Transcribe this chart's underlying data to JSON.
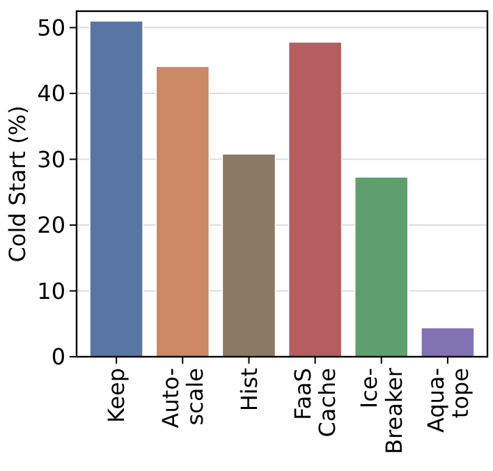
{
  "chart_data": {
    "type": "bar",
    "ylabel": "Cold Start (%)",
    "categories": [
      "Keep",
      "Auto-\nscale",
      "Hist",
      "FaaS\nCache",
      "Ice-\nBreaker",
      "Aqua-\ntope"
    ],
    "values": [
      51,
      44.1,
      30.8,
      47.8,
      27.3,
      4.4
    ],
    "colors": [
      "#5875a4",
      "#cc8963",
      "#8c7863",
      "#b55d60",
      "#5f9e6e",
      "#8172b3"
    ],
    "ylim": [
      0,
      52.5
    ],
    "yticks": [
      0,
      10,
      20,
      30,
      40,
      50
    ],
    "grid": "y"
  }
}
